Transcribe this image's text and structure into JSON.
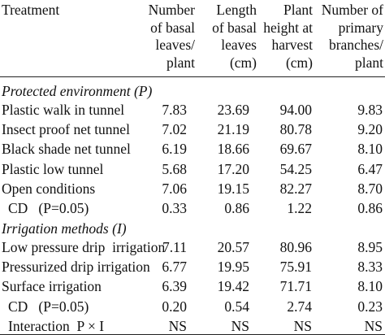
{
  "table": {
    "header": {
      "treatment": "Treatment",
      "col1": [
        "Number",
        "of basal",
        "leaves/",
        "plant"
      ],
      "col2": [
        "Length",
        "of basal",
        "leaves",
        "(cm)"
      ],
      "col3": [
        "Plant",
        "height at",
        "harvest",
        "(cm)"
      ],
      "col4": [
        "Number of",
        "primary",
        "branches/",
        "plant"
      ]
    },
    "section_p": "Protected   environment (P)",
    "rows_p": [
      {
        "label": "Plastic walk in tunnel",
        "v1": "7.83",
        "v2": "23.69",
        "v3": "94.00",
        "v4": "9.83"
      },
      {
        "label": "Insect proof net tunnel",
        "v1": "7.02",
        "v2": "21.19",
        "v3": "80.78",
        "v4": "9.20"
      },
      {
        "label": "Black shade net tunnel",
        "v1": "6.19",
        "v2": "18.66",
        "v3": "69.67",
        "v4": "8.10"
      },
      {
        "label": "Plastic low tunnel",
        "v1": "5.68",
        "v2": "17.20",
        "v3": "54.25",
        "v4": "6.47"
      },
      {
        "label": "Open conditions",
        "v1": "7.06",
        "v2": "19.15",
        "v3": "82.27",
        "v4": "8.70"
      },
      {
        "label": "CD   (P=0.05)",
        "v1": "0.33",
        "v2": "0.86",
        "v3": "1.22",
        "v4": "0.86"
      }
    ],
    "section_i": "Irrigation methods (I)",
    "rows_i": [
      {
        "label": "Low pressure drip  irrigation",
        "v1": "7.11",
        "v2": "20.57",
        "v3": "80.96",
        "v4": "8.95"
      },
      {
        "label": "Pressurized drip irrigation",
        "v1": "6.77",
        "v2": "19.95",
        "v3": "75.91",
        "v4": "8.33"
      },
      {
        "label": "Surface irrigation",
        "v1": "6.39",
        "v2": "19.42",
        "v3": "71.71",
        "v4": "8.10"
      },
      {
        "label": "CD   (P=0.05)",
        "v1": "0.20",
        "v2": "0.54",
        "v3": "2.74",
        "v4": "0.23"
      },
      {
        "label": "Interaction  P × I",
        "v1": "NS",
        "v2": "NS",
        "v3": "NS",
        "v4": "NS"
      }
    ]
  }
}
